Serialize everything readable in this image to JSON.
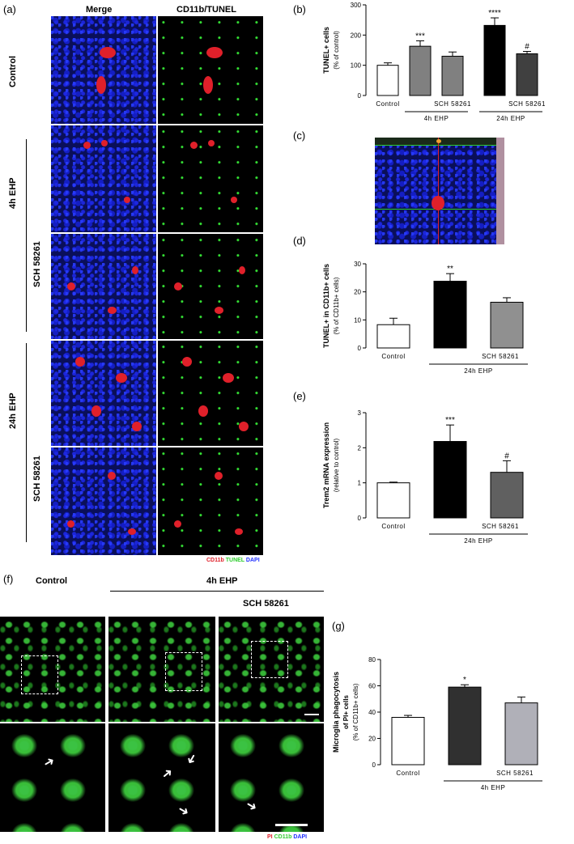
{
  "panels": {
    "a": "(a)",
    "b": "(b)",
    "c": "(c)",
    "d": "(d)",
    "e": "(e)",
    "f": "(f)",
    "g": "(g)"
  },
  "panel_a": {
    "col_headers": [
      "Merge",
      "CD11b/TUNEL"
    ],
    "row_labels": {
      "control": "Control",
      "eh4": "4h EHP",
      "sch_4": "SCH 58261",
      "eh24": "24h EHP",
      "sch_24": "SCH 58261"
    },
    "legend": {
      "cd11b": "CD11b",
      "tunel": "TUNEL",
      "dapi": "DAPI"
    },
    "colors": {
      "cd11b": "#e0202a",
      "tunel": "#2ecc2e",
      "dapi": "#2030ff"
    }
  },
  "panel_f": {
    "col_headers": {
      "control": "Control",
      "eh4": "4h EHP",
      "sch": "SCH 58261"
    },
    "legend": {
      "pi": "PI",
      "cd11b": "CD11b",
      "dapi": "DAPI"
    },
    "colors": {
      "pi": "#e0202a",
      "cd11b": "#2ecc2e",
      "dapi": "#2030ff"
    }
  },
  "chart_data": [
    {
      "id": "b",
      "type": "bar",
      "ylabel_line1": "TUNEL+ cells",
      "ylabel_line2": "(% of control)",
      "ylim": [
        0,
        300
      ],
      "yticks": [
        0,
        100,
        200,
        300
      ],
      "categories": [
        "Control",
        "",
        "SCH 58261",
        "",
        "SCH 58261"
      ],
      "values": [
        100,
        163,
        130,
        232,
        138
      ],
      "errors": [
        8,
        18,
        14,
        25,
        8
      ],
      "fills": [
        "#ffffff",
        "#808080",
        "#808080",
        "#000000",
        "#404040"
      ],
      "annotations": [
        "",
        "***",
        "",
        "****",
        "#"
      ],
      "groups": [
        {
          "label": "4h EHP",
          "from": 1,
          "to": 2
        },
        {
          "label": "24h EHP",
          "from": 3,
          "to": 4
        }
      ]
    },
    {
      "id": "d",
      "type": "bar",
      "ylabel_line1": "TUNEL+ in CD11b+ cells",
      "ylabel_line2": "(% of CD11b+ cells)",
      "ylim": [
        0,
        30
      ],
      "yticks": [
        0,
        10,
        20,
        30
      ],
      "categories": [
        "Control",
        "",
        "SCH 58261"
      ],
      "values": [
        8.3,
        23.8,
        16.3
      ],
      "errors": [
        2.3,
        2.7,
        1.6
      ],
      "fills": [
        "#ffffff",
        "#000000",
        "#909090"
      ],
      "annotations": [
        "",
        "**",
        ""
      ],
      "groups": [
        {
          "label": "24h EHP",
          "from": 1,
          "to": 2
        }
      ]
    },
    {
      "id": "e",
      "type": "bar",
      "ylabel_line1": "Trem2 mRNA expression",
      "ylabel_line2": "(relative to control)",
      "ylim": [
        0,
        3
      ],
      "yticks": [
        0,
        1,
        2,
        3
      ],
      "categories": [
        "Control",
        "",
        "SCH 58261"
      ],
      "values": [
        1.0,
        2.18,
        1.3
      ],
      "errors": [
        0.02,
        0.47,
        0.33
      ],
      "fills": [
        "#ffffff",
        "#000000",
        "#606060"
      ],
      "annotations": [
        "",
        "***",
        "#"
      ],
      "groups": [
        {
          "label": "24h EHP",
          "from": 1,
          "to": 2
        }
      ]
    },
    {
      "id": "g",
      "type": "bar",
      "ylabel_line1": "Microglia phagocytosis",
      "ylabel_line2": "of PI+ cells",
      "ylabel_line3": "(% of CD11b+ cells)",
      "ylim": [
        0,
        80
      ],
      "yticks": [
        0,
        20,
        40,
        60,
        80
      ],
      "categories": [
        "Control",
        "",
        "SCH 58261"
      ],
      "values": [
        36,
        59,
        47
      ],
      "errors": [
        1.5,
        1.8,
        4.5
      ],
      "fills": [
        "#ffffff",
        "#303030",
        "#b0b0b8"
      ],
      "annotations": [
        "",
        "*",
        ""
      ],
      "groups": [
        {
          "label": "4h EHP",
          "from": 1,
          "to": 2
        }
      ]
    }
  ]
}
